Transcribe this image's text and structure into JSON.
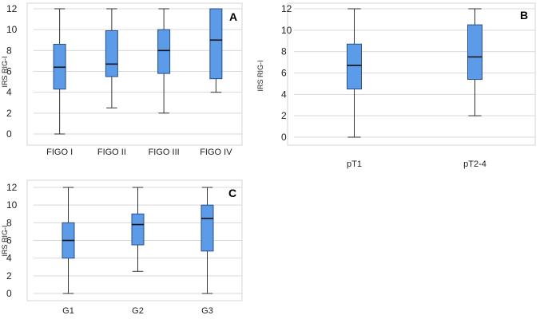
{
  "chart_data": [
    {
      "type": "boxplot",
      "panel_label": "A",
      "ylabel": "IRS RIG-I",
      "ylim": [
        0,
        12
      ],
      "yticks": [
        0,
        2,
        4,
        6,
        8,
        10,
        12
      ],
      "categories": [
        "FIGO I",
        "FIGO II",
        "FIGO III",
        "FIGO IV"
      ],
      "boxes": [
        {
          "min": 0,
          "q1": 4.3,
          "median": 6.4,
          "q3": 8.6,
          "max": 12
        },
        {
          "min": 2.5,
          "q1": 5.5,
          "median": 6.7,
          "q3": 9.9,
          "max": 12
        },
        {
          "min": 2,
          "q1": 5.8,
          "median": 8,
          "q3": 10,
          "max": 12
        },
        {
          "min": 4,
          "q1": 5.3,
          "median": 9,
          "q3": 12,
          "max": 12
        }
      ],
      "color": "#5b9be8"
    },
    {
      "type": "boxplot",
      "panel_label": "B",
      "ylabel": "IRS RIG-I",
      "ylim": [
        0,
        12
      ],
      "yticks": [
        0,
        2,
        4,
        6,
        8,
        10,
        12
      ],
      "categories": [
        "pT1",
        "pT2-4"
      ],
      "boxes": [
        {
          "min": 0,
          "q1": 4.5,
          "median": 6.7,
          "q3": 8.7,
          "max": 12
        },
        {
          "min": 2,
          "q1": 5.4,
          "median": 7.5,
          "q3": 10.5,
          "max": 12
        }
      ],
      "color": "#5b9be8"
    },
    {
      "type": "boxplot",
      "panel_label": "C",
      "ylabel": "IRS RIG-I",
      "ylim": [
        0,
        12
      ],
      "yticks": [
        0,
        2,
        4,
        6,
        8,
        10,
        12
      ],
      "categories": [
        "G1",
        "G2",
        "G3"
      ],
      "boxes": [
        {
          "min": 0,
          "q1": 4,
          "median": 6,
          "q3": 8,
          "max": 12
        },
        {
          "min": 2.5,
          "q1": 5.5,
          "median": 7.8,
          "q3": 9,
          "max": 12
        },
        {
          "min": 0,
          "q1": 4.8,
          "median": 8.5,
          "q3": 10,
          "max": 12
        }
      ],
      "color": "#5b9be8"
    }
  ]
}
